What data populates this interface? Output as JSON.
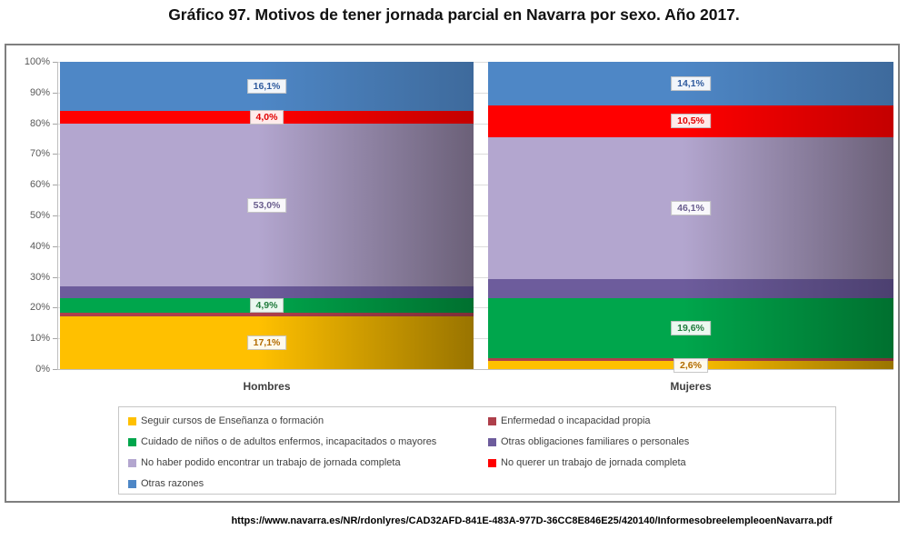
{
  "page": {
    "title": "Gráfico 97. Motivos de tener jornada parcial en Navarra por sexo. Año 2017.",
    "source_url": "https://www.navarra.es/NR/rdonlyres/CAD32AFD-841E-483A-977D-36CC8E846E25/420140/InformesobreelempleoenNavarra.pdf"
  },
  "chart_data": {
    "type": "bar",
    "subtype": "stacked-100-percent",
    "title": "Gráfico 97. Motivos de tener jornada parcial en Navarra por sexo. Año 2017.",
    "categories": [
      "Hombres",
      "Mujeres"
    ],
    "xlabel": "",
    "ylabel": "",
    "ylim": [
      0,
      100
    ],
    "y_ticks": [
      "0%",
      "10%",
      "20%",
      "30%",
      "40%",
      "50%",
      "60%",
      "70%",
      "80%",
      "90%",
      "100%"
    ],
    "grid": true,
    "legend_position": "bottom",
    "legend_columns": 2,
    "series": [
      {
        "name": "Seguir cursos de Enseñanza o formación",
        "color": "#FFC000",
        "color_dark": "#997400",
        "label_color": "#B26B00",
        "values": [
          17.1,
          2.6
        ],
        "labels": [
          "17,1%",
          "2,6%"
        ]
      },
      {
        "name": "Enfermedad o incapacidad propia",
        "color": "#AE3F4B",
        "color_dark": "#7E2F38",
        "label_color": "#9E3A47",
        "values": [
          1.2,
          1.0
        ],
        "labels": [
          null,
          null
        ]
      },
      {
        "name": "Cuidado de niños o de adultos enfermos, incapacitados o mayores",
        "color": "#00A64C",
        "color_dark": "#00702F",
        "label_color": "#1F7B3C",
        "values": [
          4.9,
          19.6
        ],
        "labels": [
          "4,9%",
          "19,6%"
        ]
      },
      {
        "name": "Otras obligaciones familiares o personales",
        "color": "#6D5C9C",
        "color_dark": "#4C4070",
        "label_color": "#5F5380",
        "values": [
          3.7,
          6.1
        ],
        "labels": [
          null,
          null
        ]
      },
      {
        "name": "No haber podido encontrar un trabajo de jornada completa",
        "color": "#B3A6CF",
        "color_dark": "#6B6078",
        "label_color": "#6A5E8E",
        "values": [
          53.0,
          46.1
        ],
        "labels": [
          "53,0%",
          "46,1%"
        ]
      },
      {
        "name": "No querer un trabajo de jornada completa",
        "color": "#FF0000",
        "color_dark": "#C40000",
        "label_color": "#E00000",
        "values": [
          4.0,
          10.5
        ],
        "labels": [
          "4,0%",
          "10,5%"
        ]
      },
      {
        "name": "Otras razones",
        "color": "#4E87C6",
        "color_dark": "#3E6A9C",
        "label_color": "#2E5A9E",
        "values": [
          16.1,
          14.1
        ],
        "labels": [
          "16,1%",
          "14,1%"
        ]
      }
    ]
  }
}
